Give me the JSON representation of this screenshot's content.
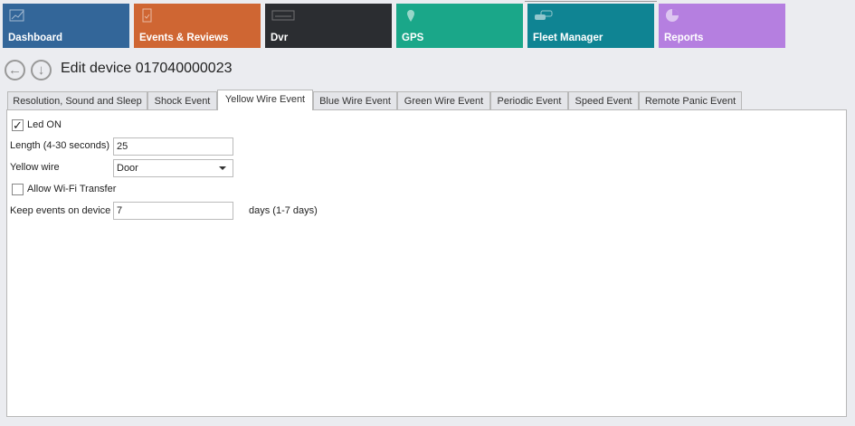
{
  "tiles": [
    {
      "label": "Dashboard",
      "icon": "chart-line-icon",
      "color": "#336699"
    },
    {
      "label": "Events & Reviews",
      "icon": "clipboard-check-icon",
      "color": "#cf6633"
    },
    {
      "label": "Dvr",
      "icon": "dvr-icon",
      "color": "#2b2d31"
    },
    {
      "label": "GPS",
      "icon": "map-pin-icon",
      "color": "#1aa789"
    },
    {
      "label": "Fleet Manager",
      "icon": "cars-icon",
      "color": "#0f8493"
    },
    {
      "label": "Reports",
      "icon": "pie-chart-icon",
      "color": "#b57fe0"
    }
  ],
  "header": {
    "title": "Edit device 017040000023"
  },
  "tabs": [
    "Resolution, Sound and Sleep",
    "Shock Event",
    "Yellow Wire Event",
    "Blue Wire Event",
    "Green Wire Event",
    "Periodic Event",
    "Speed Event",
    "Remote Panic Event"
  ],
  "active_tab": "Yellow Wire Event",
  "form": {
    "led_on": {
      "label": "Led ON",
      "checked": true
    },
    "length": {
      "label": "Length (4-30 seconds)",
      "value": "25"
    },
    "yellow_wire": {
      "label": "Yellow wire",
      "value": "Door"
    },
    "wifi": {
      "label": "Allow Wi-Fi Transfer",
      "checked": false
    },
    "keep": {
      "label": "Keep events on device",
      "value": "7",
      "suffix": "days (1-7 days)"
    }
  }
}
